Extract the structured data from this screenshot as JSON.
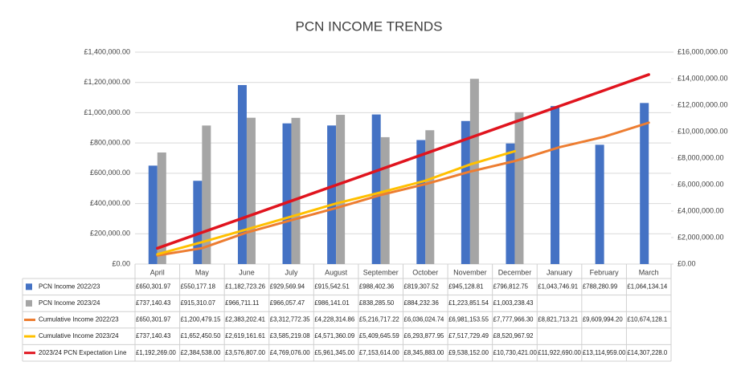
{
  "chart_data": {
    "type": "bar",
    "title": "PCN INCOME TRENDS",
    "categories": [
      "April",
      "May",
      "June",
      "July",
      "August",
      "September",
      "October",
      "November",
      "December",
      "January",
      "February",
      "March"
    ],
    "ylim": [
      0,
      1400000
    ],
    "yticks": [
      {
        "value": 0,
        "label": "£0.00"
      },
      {
        "value": 200000,
        "label": "£200,000.00"
      },
      {
        "value": 400000,
        "label": "£400,000.00"
      },
      {
        "value": 600000,
        "label": "£600,000.00"
      },
      {
        "value": 800000,
        "label": "£800,000.00"
      },
      {
        "value": 1000000,
        "label": "£1,000,000.00"
      },
      {
        "value": 1200000,
        "label": "£1,200,000.00"
      },
      {
        "value": 1400000,
        "label": "£1,400,000.00"
      }
    ],
    "y2lim": [
      0,
      16000000
    ],
    "y2ticks": [
      {
        "value": 0,
        "label": "£0.00"
      },
      {
        "value": 2000000,
        "label": "£2,000,000.00"
      },
      {
        "value": 4000000,
        "label": "£4,000,000.00"
      },
      {
        "value": 6000000,
        "label": "£6,000,000.00"
      },
      {
        "value": 8000000,
        "label": "£8,000,000.00"
      },
      {
        "value": 10000000,
        "label": "£10,000,000.00"
      },
      {
        "value": 12000000,
        "label": "£12,000,000.00"
      },
      {
        "value": 14000000,
        "label": "£14,000,000.00"
      },
      {
        "value": 16000000,
        "label": "£16,000,000.00"
      }
    ],
    "grid": true,
    "series": [
      {
        "name": "PCN Income 2022/23",
        "type": "bar",
        "color": "#4472c4",
        "values": [
          650301.97,
          550177.18,
          1182723.26,
          929569.94,
          915542.51,
          988402.36,
          819307.52,
          945128.81,
          796812.75,
          1043746.91,
          788280.99,
          1064134.14
        ],
        "value_labels": [
          "£650,301.97",
          "£550,177.18",
          "£1,182,723.26",
          "£929,569.94",
          "£915,542.51",
          "£988,402.36",
          "£819,307.52",
          "£945,128.81",
          "£796,812.75",
          "£1,043,746.91",
          "£788,280.99",
          "£1,064,134.14"
        ]
      },
      {
        "name": "PCN Income 2023/24",
        "type": "bar",
        "color": "#a5a5a5",
        "values": [
          737140.43,
          915310.07,
          966711.11,
          966057.47,
          986141.01,
          838285.5,
          884232.36,
          1223851.54,
          1003238.43,
          null,
          null,
          null
        ],
        "value_labels": [
          "£737,140.43",
          "£915,310.07",
          "£966,711.11",
          "£966,057.47",
          "£986,141.01",
          "£838,285.50",
          "£884,232.36",
          "£1,223,851.54",
          "£1,003,238.43",
          null,
          null,
          null
        ]
      },
      {
        "name": "Cumulative Income 2022/23",
        "type": "line",
        "axis": "y2",
        "color": "#ed7d31",
        "values": [
          650301.97,
          1200479.15,
          2383202.41,
          3312772.35,
          4228314.86,
          5216717.22,
          6036024.74,
          6981153.55,
          7777966.3,
          8821713.21,
          9609994.2,
          10674128.1
        ],
        "value_labels": [
          "£650,301.97",
          "£1,200,479.15",
          "£2,383,202.41",
          "£3,312,772.35",
          "£4,228,314.86",
          "£5,216,717.22",
          "£6,036,024.74",
          "£6,981,153.55",
          "£7,777,966.30",
          "£8,821,713.21",
          "£9,609,994.20",
          "£10,674,128.1"
        ]
      },
      {
        "name": "Cumulative Income 2023/24",
        "type": "line",
        "axis": "y2",
        "color": "#ffc000",
        "values": [
          737140.43,
          1652450.5,
          2619161.61,
          3585219.08,
          4571360.09,
          5409645.59,
          6293877.95,
          7517729.49,
          8520967.92,
          null,
          null,
          null
        ],
        "value_labels": [
          "£737,140.43",
          "£1,652,450.50",
          "£2,619,161.61",
          "£3,585,219.08",
          "£4,571,360.09",
          "£5,409,645.59",
          "£6,293,877.95",
          "£7,517,729.49",
          "£8,520,967.92",
          null,
          null,
          null
        ]
      },
      {
        "name": "2023/24 PCN Expectation Line",
        "type": "line",
        "axis": "y2",
        "color": "#e0141e",
        "values": [
          1192269.0,
          2384538.0,
          3576807.0,
          4769076.0,
          5961345.0,
          7153614.0,
          8345883.0,
          9538152.0,
          10730421.0,
          11922690.0,
          13114959.0,
          14307228.0
        ],
        "value_labels": [
          "£1,192,269.00",
          "£2,384,538.00",
          "£3,576,807.00",
          "£4,769,076.00",
          "£5,961,345.00",
          "£7,153,614.00",
          "£8,345,883.00",
          "£9,538,152.00",
          "£10,730,421.00",
          "£11,922,690.00",
          "£13,114,959.00",
          "£14,307,228.0"
        ]
      }
    ]
  }
}
